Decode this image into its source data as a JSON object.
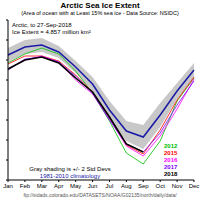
{
  "chart_data": {
    "type": "line",
    "title": "Arctic Sea Ice Extent",
    "subtitle": "(Area of ocean with at Least 15% sea ice - Data Source: NSIDC)",
    "annotations": [
      "Arctic, to 27-Sep-2018",
      "Ice Extent = 4.857 million km²"
    ],
    "footer": "ftp://sidads.colorado.edu/DATASETS/NOAA/G02135/north/daily/data/",
    "categories": [
      "Jan",
      "Feb",
      "Mar",
      "Apr",
      "May",
      "Jun",
      "Jul",
      "Aug",
      "Sep",
      "Oct",
      "Nov",
      "Dec"
    ],
    "ylim": [
      2,
      18
    ],
    "yticks": [
      2,
      4,
      6,
      8,
      10,
      12,
      14,
      16,
      18
    ],
    "tick_labels": "x",
    "grid": false,
    "legend": "lower right",
    "shading": {
      "label": "Gray shading is +/- 2 Std Devs",
      "color": "#c8c8c8",
      "lower": [
        13.8,
        14.6,
        14.8,
        14.2,
        12.7,
        10.9,
        8.1,
        5.9,
        5.1,
        7.3,
        10.1,
        12.3
      ],
      "upper": [
        15.2,
        16.0,
        16.2,
        15.4,
        13.9,
        12.3,
        9.9,
        7.9,
        7.5,
        9.7,
        11.7,
        13.7
      ]
    },
    "climatology": {
      "name": "1981-2010 climatology",
      "color": "#1a1aa6",
      "values": [
        14.5,
        15.3,
        15.5,
        14.8,
        13.3,
        11.6,
        9.0,
        6.9,
        6.3,
        8.5,
        10.9,
        13.0
      ]
    },
    "series": [
      {
        "name": "2012",
        "color": "#00c000",
        "values": [
          13.7,
          14.6,
          15.2,
          14.6,
          12.9,
          10.7,
          7.9,
          4.7,
          3.6,
          5.9,
          9.9,
          12.2
        ]
      },
      {
        "name": "2015",
        "color": "#ff0000",
        "values": [
          13.6,
          14.4,
          14.4,
          13.9,
          12.5,
          10.8,
          8.3,
          5.5,
          4.6,
          7.0,
          10.0,
          12.3
        ]
      },
      {
        "name": "2016",
        "color": "#ff00ff",
        "values": [
          13.1,
          14.0,
          14.4,
          13.8,
          12.0,
          10.6,
          8.1,
          5.4,
          4.4,
          6.4,
          9.1,
          12.1
        ]
      },
      {
        "name": "2017",
        "color": "#8000ff",
        "values": [
          13.0,
          14.1,
          14.3,
          13.8,
          12.4,
          10.7,
          8.0,
          5.6,
          4.8,
          6.7,
          9.5,
          11.9
        ]
      },
      {
        "name": "2018",
        "color": "#000000",
        "values": [
          13.1,
          14.0,
          14.3,
          13.7,
          12.2,
          10.8,
          8.3,
          5.6,
          4.8,
          null,
          null,
          null
        ]
      }
    ]
  }
}
